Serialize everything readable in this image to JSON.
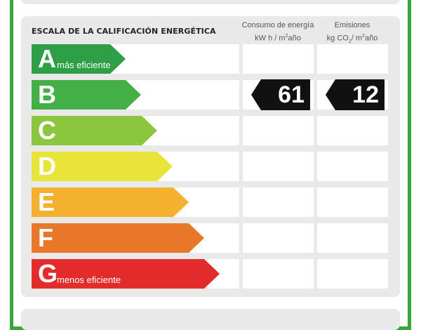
{
  "header": {
    "title": "ESCALA DE LA CALIFICACIÓN ENERGÉTICA",
    "consumo_label": "Consumo de energía",
    "consumo_unit_base": "kW h / m",
    "consumo_unit_sup": "2",
    "consumo_unit_end": "año",
    "emisiones_label": "Emisiones",
    "emisiones_unit_base": "kg CO",
    "emisiones_unit_sub": "2",
    "emisiones_unit_mid": "/ m",
    "emisiones_unit_sup": "2",
    "emisiones_unit_end": "año"
  },
  "ratings": [
    {
      "letter": "A",
      "note": "más eficiente",
      "color": "#2e9e47"
    },
    {
      "letter": "B",
      "note": "",
      "color": "#43b047"
    },
    {
      "letter": "C",
      "note": "",
      "color": "#8cc63f"
    },
    {
      "letter": "D",
      "note": "",
      "color": "#e9e43a"
    },
    {
      "letter": "E",
      "note": "",
      "color": "#f3b12f"
    },
    {
      "letter": "F",
      "note": "",
      "color": "#e8772a"
    },
    {
      "letter": "G",
      "note": "menos eficiente",
      "color": "#e32b2b"
    }
  ],
  "result": {
    "rating_index": 1,
    "consumo_value": "61",
    "emisiones_value": "12"
  },
  "colors": {
    "frame": "#3aa53a",
    "panel": "#e9e9e9",
    "tag": "#111111"
  }
}
